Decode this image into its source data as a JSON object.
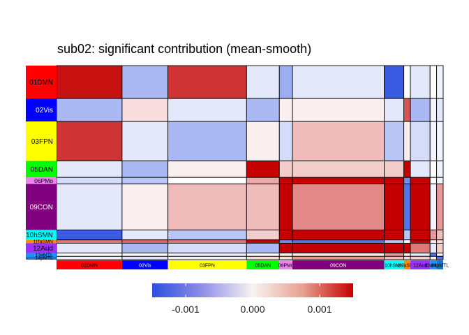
{
  "chart_data": {
    "type": "heatmap",
    "title": "sub02: significant contribution (mean-smooth)",
    "networks": [
      {
        "label": "01DMN",
        "color": "#ff0000",
        "text_color": "#000000"
      },
      {
        "label": "02Vis",
        "color": "#0000ff",
        "text_color": "#ffffff"
      },
      {
        "label": "03FPN",
        "color": "#ffff00",
        "text_color": "#000000"
      },
      {
        "label": "05DAN",
        "color": "#00ff00",
        "text_color": "#000000"
      },
      {
        "label": "06PMo",
        "color": "#ee82ee",
        "text_color": "#000000"
      },
      {
        "label": "09CON",
        "color": "#800080",
        "text_color": "#ffffff"
      },
      {
        "label": "10hSMN",
        "color": "#00ffff",
        "text_color": "#000000"
      },
      {
        "label": "11faSMN",
        "color": "#ff8c00",
        "text_color": "#000000"
      },
      {
        "label": "12Aud",
        "color": "#9b30ff",
        "text_color": "#000000"
      },
      {
        "label": "13aMTL",
        "color": "#1e90ff",
        "text_color": "#000000"
      },
      {
        "label": "14pMTL",
        "color": "#1874cd",
        "text_color": "#000000"
      }
    ],
    "network_sizes": [
      10,
      7,
      12,
      5,
      2,
      14,
      3,
      1,
      3,
      1,
      1
    ],
    "values": [
      [
        0.0014,
        -0.0006,
        0.0012,
        -0.0002,
        -0.0007,
        -0.0002,
        -0.0014,
        0.0,
        -0.0002,
        0.0,
        -0.0001
      ],
      [
        -0.0006,
        0.0002,
        -0.0002,
        -0.0006,
        0.0001,
        0.0001,
        -0.0002,
        0.001,
        -0.0006,
        -0.0001,
        -0.0002
      ],
      [
        0.0012,
        -0.0002,
        -0.0006,
        0.0001,
        -0.0003,
        0.0004,
        -0.0005,
        0.0001,
        -0.0003,
        -0.0001,
        -0.0001
      ],
      [
        -0.0002,
        -0.0006,
        0.0001,
        0.0016,
        0.0003,
        0.0003,
        0.0003,
        0.0015,
        -0.0002,
        0.0,
        -0.0001
      ],
      [
        -0.0003,
        -0.0005,
        0.0,
        0.0005,
        0.002,
        0.002,
        0.0015,
        -0.001,
        0.0015,
        0.0,
        -0.0001
      ],
      [
        -0.0002,
        0.0001,
        0.0004,
        0.0004,
        0.0016,
        0.0007,
        0.0016,
        -0.0012,
        0.0015,
        -0.0001,
        0.0006
      ],
      [
        -0.0014,
        -0.0002,
        -0.0005,
        0.0003,
        0.0015,
        0.0016,
        0.0015,
        -0.0005,
        0.0016,
        0.0006,
        0.0004
      ],
      [
        0.0008,
        0.0009,
        0.0008,
        0.0016,
        -0.001,
        -0.0012,
        -0.0005,
        0.0,
        0.0016,
        0.0001,
        0.0002
      ],
      [
        -0.0002,
        -0.0006,
        -0.0003,
        -0.0006,
        0.0015,
        0.0016,
        0.0016,
        0.0016,
        0.0008,
        -0.0002,
        0.0003
      ],
      [
        0.0,
        0.0,
        -0.0001,
        0.0,
        0.0001,
        0.0001,
        0.0006,
        0.0001,
        -0.0002,
        -0.0012,
        0.0001
      ],
      [
        -0.0001,
        -0.0002,
        -0.0001,
        0.0002,
        0.0002,
        0.0006,
        0.0004,
        0.0002,
        0.0003,
        0.0001,
        -0.0012
      ]
    ],
    "color_scale": {
      "low": "#2b50e0",
      "mid": "#ffffff",
      "high": "#c40000",
      "limits": [
        -0.0015,
        0.0015
      ]
    },
    "colorbar_ticks": [
      {
        "value": -0.001,
        "label": "-0.001"
      },
      {
        "value": 0.0,
        "label": "0.000"
      },
      {
        "value": 0.001,
        "label": "0.001"
      }
    ],
    "legend_position": "bottom"
  }
}
